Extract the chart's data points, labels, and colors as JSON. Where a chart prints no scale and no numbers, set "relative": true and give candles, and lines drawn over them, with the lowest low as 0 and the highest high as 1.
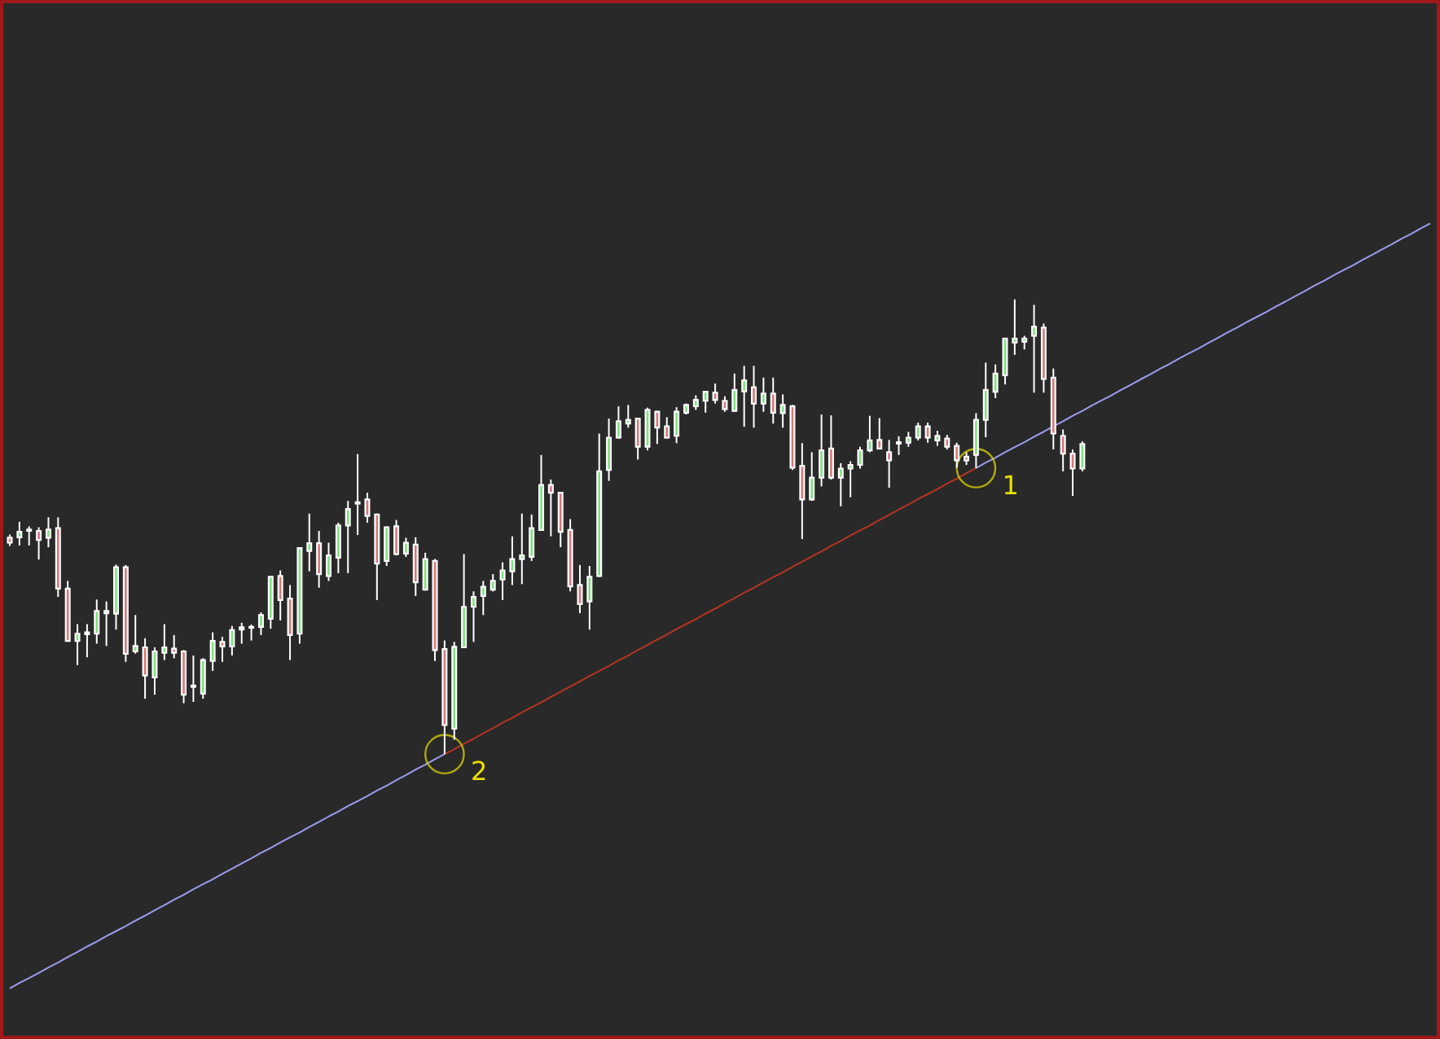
{
  "chart_data": {
    "type": "candlestick",
    "relative": true,
    "categories": [
      null,
      null,
      null,
      null,
      null,
      null,
      null,
      null,
      null,
      null,
      null,
      null,
      null,
      null,
      null,
      null,
      null,
      null,
      null,
      null,
      null,
      null,
      null,
      null,
      null,
      null,
      null,
      null,
      null,
      null,
      null,
      null,
      null,
      null,
      null,
      null,
      null,
      null,
      null,
      null,
      null,
      null,
      null,
      null,
      null,
      null,
      null,
      null,
      null,
      null,
      null,
      null,
      null,
      null,
      null,
      null,
      null,
      null,
      null,
      null,
      null,
      null,
      null,
      null,
      null,
      null,
      null,
      null,
      null,
      null,
      null,
      null,
      null,
      null,
      null,
      null,
      null,
      null,
      null,
      null,
      null,
      null,
      null,
      null,
      null,
      null,
      null,
      null,
      null,
      null,
      null,
      null,
      null,
      null,
      null,
      null,
      null,
      null,
      null,
      null,
      null,
      null,
      null,
      null,
      null,
      null,
      null,
      null,
      null,
      null,
      null,
      null,
      null,
      null,
      null,
      null,
      null,
      null,
      null,
      null,
      null,
      null,
      null,
      null,
      null,
      null,
      null,
      null,
      null,
      null,
      null,
      null,
      null,
      null,
      null,
      null,
      null,
      null,
      null,
      null,
      null,
      null,
      null,
      null,
      null,
      null,
      null,
      null
    ],
    "ohlc": [
      [
        0.476,
        0.483,
        0.458,
        0.465
      ],
      [
        0.477,
        0.511,
        0.459,
        0.489
      ],
      [
        0.491,
        0.501,
        0.459,
        0.494
      ],
      [
        0.491,
        0.499,
        0.428,
        0.471
      ],
      [
        0.476,
        0.521,
        0.455,
        0.494
      ],
      [
        0.497,
        0.521,
        0.346,
        0.364
      ],
      [
        0.364,
        0.381,
        0.249,
        0.249
      ],
      [
        0.249,
        0.286,
        0.196,
        0.265
      ],
      [
        0.264,
        0.286,
        0.213,
        0.268
      ],
      [
        0.265,
        0.34,
        0.243,
        0.315
      ],
      [
        0.31,
        0.336,
        0.238,
        0.315
      ],
      [
        0.309,
        0.417,
        0.274,
        0.411
      ],
      [
        0.411,
        0.416,
        0.203,
        0.221
      ],
      [
        0.226,
        0.306,
        0.221,
        0.238
      ],
      [
        0.235,
        0.255,
        0.122,
        0.173
      ],
      [
        0.169,
        0.235,
        0.131,
        0.226
      ],
      [
        0.223,
        0.286,
        0.207,
        0.235
      ],
      [
        0.232,
        0.262,
        0.211,
        0.223
      ],
      [
        0.226,
        0.229,
        0.112,
        0.131
      ],
      [
        0.148,
        0.217,
        0.115,
        0.151
      ],
      [
        0.133,
        0.211,
        0.122,
        0.207
      ],
      [
        0.205,
        0.268,
        0.183,
        0.249
      ],
      [
        0.247,
        0.258,
        0.203,
        0.237
      ],
      [
        0.237,
        0.282,
        0.217,
        0.273
      ],
      [
        0.274,
        0.289,
        0.243,
        0.279
      ],
      [
        0.278,
        0.285,
        0.25,
        0.28
      ],
      [
        0.28,
        0.312,
        0.262,
        0.306
      ],
      [
        0.298,
        0.39,
        0.276,
        0.39
      ],
      [
        0.392,
        0.404,
        0.294,
        0.339
      ],
      [
        0.342,
        0.372,
        0.207,
        0.262
      ],
      [
        0.265,
        0.455,
        0.243,
        0.453
      ],
      [
        0.447,
        0.529,
        0.402,
        0.464
      ],
      [
        0.464,
        0.491,
        0.366,
        0.396
      ],
      [
        0.392,
        0.465,
        0.381,
        0.437
      ],
      [
        0.432,
        0.509,
        0.398,
        0.503
      ],
      [
        0.503,
        0.557,
        0.398,
        0.539
      ],
      [
        0.551,
        0.66,
        0.482,
        0.554
      ],
      [
        0.56,
        0.575,
        0.509,
        0.524
      ],
      [
        0.527,
        0.529,
        0.339,
        0.419
      ],
      [
        0.425,
        0.501,
        0.414,
        0.499
      ],
      [
        0.501,
        0.515,
        0.437,
        0.44
      ],
      [
        0.441,
        0.476,
        0.434,
        0.465
      ],
      [
        0.461,
        0.477,
        0.348,
        0.378
      ],
      [
        0.362,
        0.443,
        0.36,
        0.429
      ],
      [
        0.425,
        0.429,
        0.205,
        0.229
      ],
      [
        0.231,
        0.25,
        0,
        0.064
      ],
      [
        0.056,
        0.247,
        0.032,
        0.236
      ],
      [
        0.235,
        0.44,
        0.235,
        0.324
      ],
      [
        0.324,
        0.358,
        0.247,
        0.346
      ],
      [
        0.348,
        0.381,
        0.306,
        0.368
      ],
      [
        0.362,
        0.396,
        0.358,
        0.381
      ],
      [
        0.384,
        0.422,
        0.339,
        0.404
      ],
      [
        0.402,
        0.479,
        0.372,
        0.429
      ],
      [
        0.429,
        0.529,
        0.374,
        0.437
      ],
      [
        0.434,
        0.527,
        0.425,
        0.497
      ],
      [
        0.493,
        0.658,
        0.493,
        0.592
      ],
      [
        0.592,
        0.604,
        0.479,
        0.575
      ],
      [
        0.575,
        0.575,
        0.455,
        0.489
      ],
      [
        0.493,
        0.517,
        0.358,
        0.369
      ],
      [
        0.372,
        0.416,
        0.31,
        0.33
      ],
      [
        0.336,
        0.414,
        0.274,
        0.39
      ],
      [
        0.392,
        0.705,
        0.39,
        0.622
      ],
      [
        0.625,
        0.738,
        0.601,
        0.696
      ],
      [
        0.696,
        0.765,
        0.694,
        0.732
      ],
      [
        0.727,
        0.768,
        0.718,
        0.735
      ],
      [
        0.738,
        0.739,
        0.648,
        0.676
      ],
      [
        0.676,
        0.762,
        0.668,
        0.757
      ],
      [
        0.753,
        0.755,
        0.682,
        0.718
      ],
      [
        0.721,
        0.741,
        0.694,
        0.696
      ],
      [
        0.7,
        0.763,
        0.684,
        0.753
      ],
      [
        0.751,
        0.771,
        0.747,
        0.768
      ],
      [
        0.765,
        0.789,
        0.757,
        0.779
      ],
      [
        0.777,
        0.798,
        0.751,
        0.797
      ],
      [
        0.795,
        0.815,
        0.771,
        0.779
      ],
      [
        0.777,
        0.787,
        0.753,
        0.759
      ],
      [
        0.755,
        0.837,
        0.753,
        0.801
      ],
      [
        0.798,
        0.854,
        0.72,
        0.822
      ],
      [
        0.807,
        0.854,
        0.718,
        0.771
      ],
      [
        0.771,
        0.828,
        0.753,
        0.793
      ],
      [
        0.793,
        0.828,
        0.727,
        0.751
      ],
      [
        0.75,
        0.791,
        0.718,
        0.768
      ],
      [
        0.765,
        0.768,
        0.625,
        0.63
      ],
      [
        0.634,
        0.684,
        0.473,
        0.56
      ],
      [
        0.56,
        0.664,
        0.557,
        0.608
      ],
      [
        0.608,
        0.747,
        0.589,
        0.668
      ],
      [
        0.672,
        0.745,
        0.604,
        0.608
      ],
      [
        0.608,
        0.64,
        0.545,
        0.628
      ],
      [
        0.628,
        0.644,
        0.565,
        0.636
      ],
      [
        0.636,
        0.676,
        0.628,
        0.668
      ],
      [
        0.668,
        0.744,
        0.664,
        0.69
      ],
      [
        0.691,
        0.739,
        0.67,
        0.672
      ],
      [
        0.664,
        0.691,
        0.586,
        0.646
      ],
      [
        0.683,
        0.699,
        0.658,
        0.686
      ],
      [
        0.685,
        0.709,
        0.676,
        0.696
      ],
      [
        0.696,
        0.729,
        0.69,
        0.721
      ],
      [
        0.721,
        0.729,
        0.685,
        0.696
      ],
      [
        0.69,
        0.711,
        0.678,
        0.7
      ],
      [
        0.694,
        0.702,
        0.67,
        0.676
      ],
      [
        0.678,
        0.685,
        0.63,
        0.646
      ],
      [
        0.654,
        0.664,
        0.636,
        0.646
      ],
      [
        0.658,
        0.75,
        0.629,
        0.735
      ],
      [
        0.735,
        0.861,
        0.697,
        0.801
      ],
      [
        0.797,
        0.857,
        0.783,
        0.837
      ],
      [
        0.833,
        0.914,
        0.813,
        0.914
      ],
      [
        0.905,
        1,
        0.878,
        0.914
      ],
      [
        0.907,
        0.92,
        0.89,
        0.914
      ],
      [
        0.92,
        0.988,
        0.795,
        0.94
      ],
      [
        0.938,
        0.947,
        0.795,
        0.825
      ],
      [
        0.828,
        0.848,
        0.67,
        0.705
      ],
      [
        0.7,
        0.714,
        0.622,
        0.661
      ],
      [
        0.661,
        0.67,
        0.568,
        0.628
      ],
      [
        0.628,
        0.688,
        0.622,
        0.682
      ],
      null,
      null,
      null,
      null,
      null,
      null,
      null,
      null,
      null,
      null,
      null,
      null,
      null,
      null,
      null,
      null,
      null,
      null,
      null,
      null,
      null,
      null,
      null,
      null,
      null,
      null,
      null,
      null,
      null,
      null,
      null,
      null,
      null,
      null,
      null,
      null
    ],
    "colors": [
      "#d87878",
      "#80e080",
      "#80e080",
      "#d87878",
      "#80e080",
      "#d87878",
      "#d87878",
      "#80e080",
      "#80e080",
      "#80e080",
      "#80e080",
      "#80e080",
      "#d87878",
      "#80e080",
      "#d87878",
      "#80e080",
      "#80e080",
      "#d87878",
      "#d87878",
      "#80e080",
      "#80e080",
      "#80e080",
      "#d87878",
      "#80e080",
      "#80e080",
      "#80e080",
      "#80e080",
      "#80e080",
      "#d87878",
      "#d87878",
      "#80e080",
      "#80e080",
      "#d87878",
      "#80e080",
      "#80e080",
      "#80e080",
      "#80e080",
      "#d87878",
      "#d87878",
      "#80e080",
      "#d87878",
      "#80e080",
      "#d87878",
      "#80e080",
      "#d87878",
      "#d87878",
      "#80e080",
      "#80e080",
      "#80e080",
      "#80e080",
      "#80e080",
      "#80e080",
      "#80e080",
      "#80e080",
      "#80e080",
      "#80e080",
      "#d87878",
      "#d87878",
      "#d87878",
      "#d87878",
      "#80e080",
      "#80e080",
      "#80e080",
      "#80e080",
      "#80e080",
      "#d87878",
      "#80e080",
      "#d87878",
      "#d87878",
      "#80e080",
      "#80e080",
      "#80e080",
      "#80e080",
      "#d87878",
      "#d87878",
      "#80e080",
      "#80e080",
      "#d87878",
      "#80e080",
      "#d87878",
      "#80e080",
      "#d87878",
      "#d87878",
      "#80e080",
      "#80e080",
      "#d87878",
      "#80e080",
      "#80e080",
      "#80e080",
      "#80e080",
      "#d87878",
      "#d87878",
      "#80e080",
      "#80e080",
      "#80e080",
      "#d87878",
      "#80e080",
      "#d87878",
      "#d87878",
      "#d87878",
      "#80e080",
      "#80e080",
      "#80e080",
      "#80e080",
      "#80e080",
      "#80e080",
      "#80e080",
      "#d87878",
      "#d87878",
      "#d87878",
      "#d87878",
      "#80e080",
      null,
      null,
      null,
      null,
      null,
      null,
      null,
      null,
      null,
      null,
      null,
      null,
      null,
      null,
      null,
      null,
      null,
      null,
      null,
      null,
      null,
      null,
      null,
      null,
      null,
      null,
      null,
      null,
      null,
      null,
      null,
      null,
      null,
      null,
      null,
      null
    ],
    "series": [
      {
        "type": "line",
        "color": "#9c9cf2",
        "values": [
          -0.515,
          -0.503,
          -0.492,
          -0.481,
          -0.469,
          -0.458,
          -0.446,
          -0.435,
          -0.423,
          -0.412,
          -0.4,
          -0.389,
          -0.378,
          -0.366,
          -0.355,
          -0.343,
          -0.332,
          -0.32,
          -0.309,
          -0.297,
          -0.286,
          -0.275,
          -0.263,
          -0.252,
          -0.24,
          -0.229,
          -0.217,
          -0.206,
          -0.194,
          -0.183,
          -0.172,
          -0.16,
          -0.149,
          -0.137,
          -0.126,
          -0.114,
          -0.103,
          -0.092,
          -0.08,
          -0.069,
          -0.057,
          -0.046,
          -0.034,
          -0.023,
          -0.011,
          0,
          null,
          null,
          null,
          null,
          null,
          null,
          null,
          null,
          null,
          null,
          null,
          null,
          null,
          null,
          null,
          null,
          null,
          null,
          null,
          null,
          null,
          null,
          null,
          null,
          null,
          null,
          null,
          null,
          null,
          null,
          null,
          null,
          null,
          null,
          null,
          null,
          null,
          null,
          null,
          null,
          null,
          null,
          null,
          null,
          null,
          null,
          null,
          null,
          null,
          null,
          null,
          null,
          null,
          null,
          0.629,
          0.641,
          0.652,
          0.664,
          0.675,
          0.686,
          0.698,
          0.709,
          0.721,
          0.732,
          0.744,
          0.755,
          0.767,
          0.778,
          0.789,
          0.801,
          0.812,
          0.824,
          0.835,
          0.847,
          0.858,
          0.87,
          0.881,
          0.892,
          0.904,
          0.915,
          0.927,
          0.938,
          0.95,
          0.961,
          0.972,
          0.984,
          0.995,
          1.007,
          1.018,
          1.03,
          1.041,
          1.053,
          1.064,
          1.075,
          1.087,
          1.098,
          1.11,
          1.121,
          1.133,
          1.144,
          1.156,
          1.167
        ]
      },
      {
        "type": "line",
        "color": "#b8341f",
        "values": [
          null,
          null,
          null,
          null,
          null,
          null,
          null,
          null,
          null,
          null,
          null,
          null,
          null,
          null,
          null,
          null,
          null,
          null,
          null,
          null,
          null,
          null,
          null,
          null,
          null,
          null,
          null,
          null,
          null,
          null,
          null,
          null,
          null,
          null,
          null,
          null,
          null,
          null,
          null,
          null,
          null,
          null,
          null,
          null,
          null,
          0,
          0.011,
          0.023,
          0.034,
          0.046,
          0.057,
          0.069,
          0.08,
          0.092,
          0.103,
          0.114,
          0.126,
          0.137,
          0.149,
          0.16,
          0.172,
          0.183,
          0.194,
          0.206,
          0.217,
          0.229,
          0.24,
          0.252,
          0.263,
          0.275,
          0.286,
          0.297,
          0.309,
          0.32,
          0.332,
          0.343,
          0.355,
          0.366,
          0.378,
          0.389,
          0.4,
          0.412,
          0.423,
          0.435,
          0.446,
          0.458,
          0.469,
          0.481,
          0.492,
          0.503,
          0.515,
          0.526,
          0.538,
          0.549,
          0.561,
          0.572,
          0.583,
          0.595,
          0.606,
          0.618,
          0.629,
          null,
          null,
          null,
          null,
          null,
          null,
          null,
          null,
          null,
          null,
          null,
          null,
          null,
          null,
          null,
          null,
          null,
          null,
          null,
          null,
          null,
          null,
          null,
          null,
          null,
          null,
          null,
          null,
          null,
          null,
          null,
          null,
          null,
          null,
          null,
          null,
          null,
          null,
          null,
          null,
          null,
          null,
          null,
          null,
          null,
          null,
          null
        ]
      },
      {
        "type": "scatter",
        "color": "#e8e000",
        "marker": "circle",
        "values": [
          null,
          null,
          null,
          null,
          null,
          null,
          null,
          null,
          null,
          null,
          null,
          null,
          null,
          null,
          null,
          null,
          null,
          null,
          null,
          null,
          null,
          null,
          null,
          null,
          null,
          null,
          null,
          null,
          null,
          null,
          null,
          null,
          null,
          null,
          null,
          null,
          null,
          null,
          null,
          null,
          null,
          null,
          null,
          null,
          null,
          0,
          null,
          null,
          null,
          null,
          null,
          null,
          null,
          null,
          null,
          null,
          null,
          null,
          null,
          null,
          null,
          null,
          null,
          null,
          null,
          null,
          null,
          null,
          null,
          null,
          null,
          null,
          null,
          null,
          null,
          null,
          null,
          null,
          null,
          null,
          null,
          null,
          null,
          null,
          null,
          null,
          null,
          null,
          null,
          null,
          null,
          null,
          null,
          null,
          null,
          null,
          null,
          null,
          null,
          null,
          0.629,
          null,
          null,
          null,
          null,
          null,
          null,
          null,
          null,
          null,
          null,
          null,
          null,
          null,
          null,
          null,
          null,
          null,
          null,
          null,
          null,
          null,
          null,
          null,
          null,
          null,
          null,
          null,
          null,
          null,
          null,
          null,
          null,
          null,
          null,
          null,
          null,
          null,
          null,
          null,
          null,
          null,
          null,
          null,
          null,
          null,
          null,
          null
        ]
      }
    ],
    "annotations": [
      "2",
      "1"
    ]
  }
}
